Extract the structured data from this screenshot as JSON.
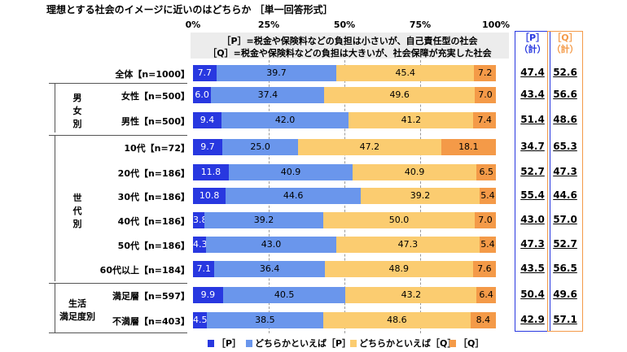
{
  "chart_data": {
    "type": "bar",
    "title": "理想とする社会のイメージに近いのはどちらか ［単一回答形式］",
    "xticks": [
      "0%",
      "25%",
      "50%",
      "75%",
      "100%"
    ],
    "xlim": [
      0,
      100
    ],
    "definitions": [
      "［P］=税金や保険料などの負担は小さいが、自己責任型の社会",
      "［Q］=税金や保険料などの負担は大きいが、社会保障が充実した社会"
    ],
    "legend_position": "bottom",
    "series": [
      {
        "name": "［P］",
        "color": "#2838e0"
      },
      {
        "name": "どちらかといえば［P］",
        "color": "#6a96ec"
      },
      {
        "name": "どちらかといえば［Q］",
        "color": "#fbcc70"
      },
      {
        "name": "［Q］",
        "color": "#f49a48"
      }
    ],
    "total_columns": [
      {
        "label": "［P］\n（計）",
        "color": "#2838e0"
      },
      {
        "label": "［Q］\n（計）",
        "color": "#f49a48"
      }
    ],
    "groups": [
      {
        "label": "",
        "rows": [
          {
            "label": "全体【n=1000】",
            "values": [
              7.7,
              39.7,
              45.4,
              7.2
            ],
            "totals": [
              "47.4",
              "52.6"
            ]
          }
        ]
      },
      {
        "label": "男\n女\n別",
        "rows": [
          {
            "label": "女性【n=500】",
            "values": [
              6.0,
              37.4,
              49.6,
              7.0
            ],
            "totals": [
              "43.4",
              "56.6"
            ]
          },
          {
            "label": "男性【n=500】",
            "values": [
              9.4,
              42.0,
              41.2,
              7.4
            ],
            "totals": [
              "51.4",
              "48.6"
            ]
          }
        ]
      },
      {
        "label": "世\n代\n別",
        "rows": [
          {
            "label": "10代【n=72】",
            "values": [
              9.7,
              25.0,
              47.2,
              18.1
            ],
            "totals": [
              "34.7",
              "65.3"
            ]
          },
          {
            "label": "20代【n=186】",
            "values": [
              11.8,
              40.9,
              40.9,
              6.5
            ],
            "totals": [
              "52.7",
              "47.3"
            ]
          },
          {
            "label": "30代【n=186】",
            "values": [
              10.8,
              44.6,
              39.2,
              5.4
            ],
            "totals": [
              "55.4",
              "44.6"
            ]
          },
          {
            "label": "40代【n=186】",
            "values": [
              3.8,
              39.2,
              50.0,
              7.0
            ],
            "totals": [
              "43.0",
              "57.0"
            ]
          },
          {
            "label": "50代【n=186】",
            "values": [
              4.3,
              43.0,
              47.3,
              5.4
            ],
            "totals": [
              "47.3",
              "52.7"
            ]
          },
          {
            "label": "60代以上【n=184】",
            "values": [
              7.1,
              36.4,
              48.9,
              7.6
            ],
            "totals": [
              "43.5",
              "56.5"
            ]
          }
        ]
      },
      {
        "label": "生活\n満足度別",
        "rows": [
          {
            "label": "満足層【n=597】",
            "values": [
              9.9,
              40.5,
              43.2,
              6.4
            ],
            "totals": [
              "50.4",
              "49.6"
            ]
          },
          {
            "label": "不満層【n=403】",
            "values": [
              4.5,
              38.5,
              48.6,
              8.4
            ],
            "totals": [
              "42.9",
              "57.1"
            ]
          }
        ]
      }
    ]
  }
}
